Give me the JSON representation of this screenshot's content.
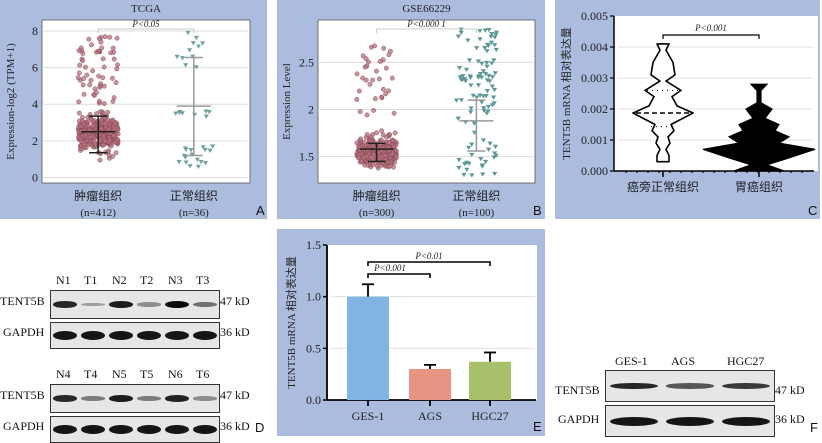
{
  "chart_data": [
    {
      "id": "A",
      "type": "scatter",
      "title": "TCGA",
      "ylabel": "Expression-log2 (TPM+1)",
      "xlabel": "",
      "ylim": [
        -0.3,
        8.6
      ],
      "yticks": [
        0,
        2,
        4,
        6,
        8
      ],
      "grid": true,
      "categories": [
        {
          "name": "肿瘤组织",
          "n_label": "(n=412)",
          "n": 412,
          "color": "#b5707c",
          "marker": "circle",
          "mean": 2.5,
          "sd_low": 1.35,
          "sd_high": 3.35
        },
        {
          "name": "正常组织",
          "n_label": "(n=36)",
          "n": 36,
          "color": "#6fa3a3",
          "marker": "triangle-down",
          "mean": 3.9,
          "sd_low": 1.2,
          "sd_high": 6.55
        }
      ],
      "significance": {
        "text": "P<0.05",
        "from": 0,
        "to": 1
      }
    },
    {
      "id": "B",
      "type": "scatter",
      "title": "GSE66229",
      "ylabel": "Expression Level",
      "xlabel": "",
      "ylim": [
        1.22,
        2.95
      ],
      "yticks": [
        1.5,
        2.0,
        2.5
      ],
      "grid": true,
      "categories": [
        {
          "name": "肿瘤组织",
          "n_label": "(n=300)",
          "n": 300,
          "color": "#b5707c",
          "marker": "circle",
          "mean": 1.58,
          "sd_low": 1.45,
          "sd_high": 1.64
        },
        {
          "name": "正常组织",
          "n_label": "(n=100)",
          "n": 100,
          "color": "#5c9898",
          "marker": "triangle-down",
          "mean": 1.88,
          "sd_low": 1.56,
          "sd_high": 2.1
        }
      ],
      "significance": {
        "text": "P<0.000 1",
        "from": 0,
        "to": 1
      }
    },
    {
      "id": "C",
      "type": "violin",
      "title": "",
      "ylabel": "TENT5B mRNA 相对表达量",
      "xlabel": "",
      "ylim": [
        0,
        0.005
      ],
      "yticks": [
        "0.000",
        "0.001",
        "0.002",
        "0.003",
        "0.004",
        "0.005"
      ],
      "grid": true,
      "categories": [
        {
          "name": "癌旁正常组织",
          "fill": "#ffffff",
          "min": 0.0003,
          "max": 0.0041,
          "median": 0.00187,
          "q1": 0.00143,
          "q3": 0.0026
        },
        {
          "name": "胃癌组织",
          "fill": "#000000",
          "min": 0.0,
          "max": 0.0028,
          "median": 0.0007
        }
      ],
      "significance": {
        "text": "P<0.001",
        "from": 0,
        "to": 1
      }
    },
    {
      "id": "E",
      "type": "bar",
      "title": "",
      "ylabel": "TENT5B mRNA 相对表达量",
      "xlabel": "",
      "ylim": [
        0,
        1.5
      ],
      "yticks": [
        "0.0",
        "0.5",
        "1.0",
        "1.5"
      ],
      "grid": true,
      "categories": [
        "GES-1",
        "AGS",
        "HGC27"
      ],
      "values": [
        1.0,
        0.3,
        0.37
      ],
      "errors": [
        0.12,
        0.04,
        0.09
      ],
      "colors": [
        "#80b4e2",
        "#e89484",
        "#a9c06a"
      ],
      "significance": [
        {
          "text": "P<0.001",
          "from": 0,
          "to": 1
        },
        {
          "text": "P<0.01",
          "from": 0,
          "to": 2
        }
      ]
    }
  ],
  "blots": {
    "D": {
      "rows": [
        {
          "lanes": [
            "N1",
            "T1",
            "N2",
            "T2",
            "N3",
            "T3"
          ],
          "target": {
            "label": "TENT5B",
            "size": "47 kD",
            "intensities": [
              0.85,
              0.2,
              0.9,
              0.3,
              1.0,
              0.45
            ]
          },
          "control": {
            "label": "GAPDH",
            "size": "36 kD",
            "intensities": [
              0.95,
              0.9,
              0.95,
              0.95,
              0.95,
              1.0
            ]
          }
        },
        {
          "lanes": [
            "N4",
            "T4",
            "N5",
            "T5",
            "N6",
            "T6"
          ],
          "target": {
            "label": "TENT5B",
            "size": "47 kD",
            "intensities": [
              0.85,
              0.4,
              0.9,
              0.4,
              0.88,
              0.3
            ]
          },
          "control": {
            "label": "GAPDH",
            "size": "36 kD",
            "intensities": [
              1.0,
              0.95,
              0.95,
              0.95,
              0.95,
              1.0
            ]
          }
        }
      ]
    },
    "F": {
      "lanes": [
        "GES-1",
        "AGS",
        "HGC27"
      ],
      "target": {
        "label": "TENT5B",
        "size": "47 kD",
        "intensities": [
          0.85,
          0.6,
          0.75
        ]
      },
      "control": {
        "label": "GAPDH",
        "size": "36 kD",
        "intensities": [
          1.0,
          0.95,
          1.0
        ]
      }
    }
  },
  "panel_letters": {
    "A": "A",
    "B": "B",
    "C": "C",
    "D": "D",
    "E": "E",
    "F": "F"
  }
}
